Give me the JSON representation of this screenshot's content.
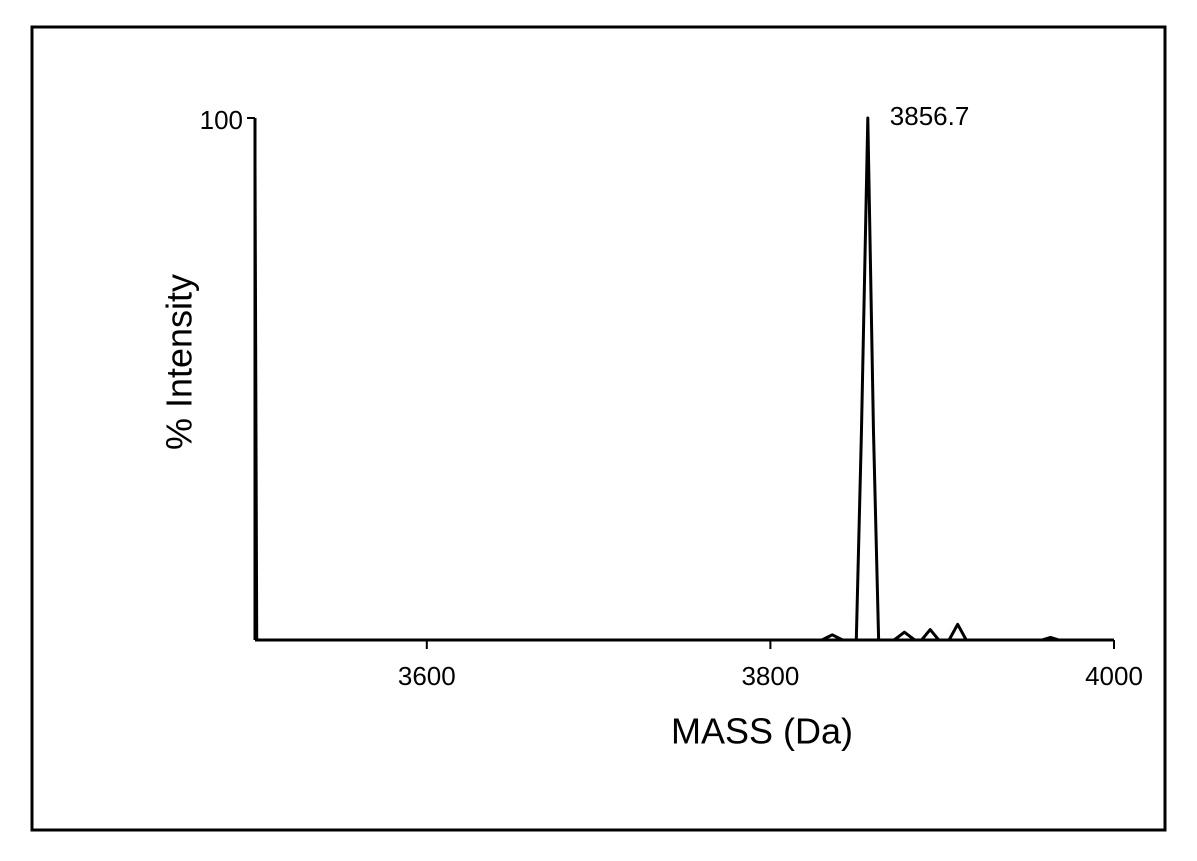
{
  "chart_data": {
    "type": "line",
    "xlabel": "MASS (Da)",
    "ylabel": "% Intensity",
    "annotation": {
      "text": "3856.7",
      "x": 3856.7,
      "y": 100
    },
    "x": [
      3500,
      3501,
      3830,
      3836,
      3842,
      3850,
      3853,
      3856.7,
      3860,
      3863,
      3872,
      3878,
      3884,
      3888,
      3893,
      3898,
      3904,
      3909,
      3914,
      3958,
      3963,
      3968,
      4000
    ],
    "series": [
      {
        "color": "#000000",
        "values": [
          91,
          0,
          0,
          1,
          0,
          0,
          40,
          100,
          40,
          0,
          0,
          1.5,
          0,
          0,
          2,
          0,
          0,
          3,
          0,
          0,
          0.5,
          0,
          0
        ]
      }
    ],
    "xlim": [
      3500,
      4000
    ],
    "xticks": [
      3600,
      3800,
      4000
    ],
    "ylim": [
      0,
      100
    ],
    "yticks": [
      100
    ]
  }
}
